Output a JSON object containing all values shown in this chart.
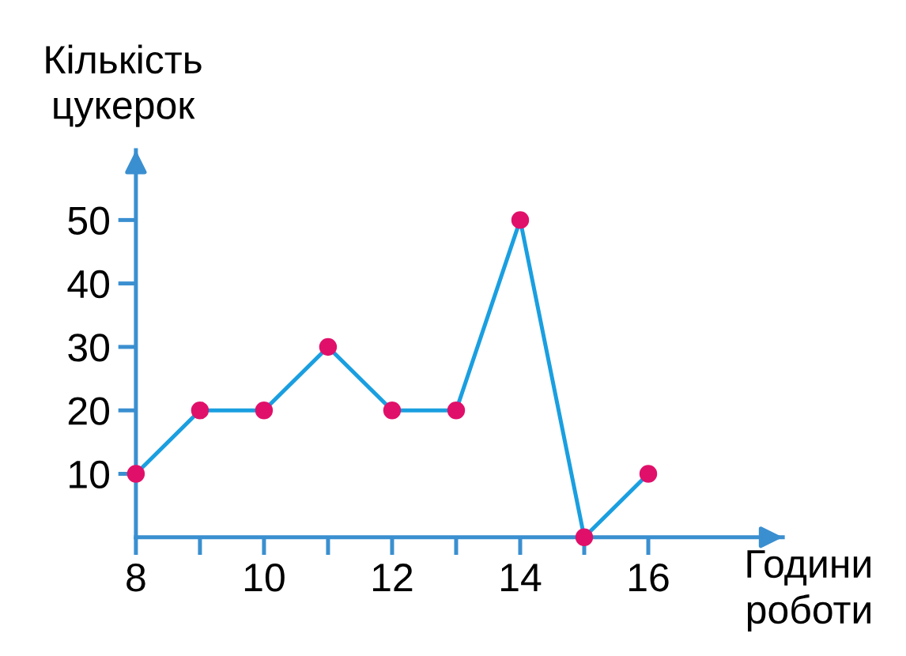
{
  "chart_data": {
    "type": "line",
    "xlabel": "Години\nроботи",
    "ylabel": "Кількість\nцукерок",
    "x": [
      8,
      9,
      10,
      11,
      12,
      13,
      14,
      15,
      16
    ],
    "series": [
      {
        "color": "#1a9fe0",
        "values": [
          10,
          20,
          20,
          30,
          20,
          20,
          50,
          0,
          10
        ]
      },
      {
        "type": "scatter",
        "marker": "circle",
        "color": "#e0106a",
        "values": [
          10,
          20,
          20,
          30,
          20,
          20,
          50,
          0,
          10
        ]
      }
    ],
    "line_style": "solid",
    "grid": false,
    "legend": false,
    "xlim": [
      8,
      18.1
    ],
    "xticks": [
      8,
      {
        "value": 9,
        "label": null
      },
      10,
      {
        "value": 11,
        "label": null
      },
      12,
      {
        "value": 13,
        "label": null
      },
      14,
      {
        "value": 15,
        "label": null
      },
      16
    ],
    "ylim": [
      0,
      61
    ],
    "yticks": [
      10,
      20,
      30,
      40,
      50
    ]
  }
}
